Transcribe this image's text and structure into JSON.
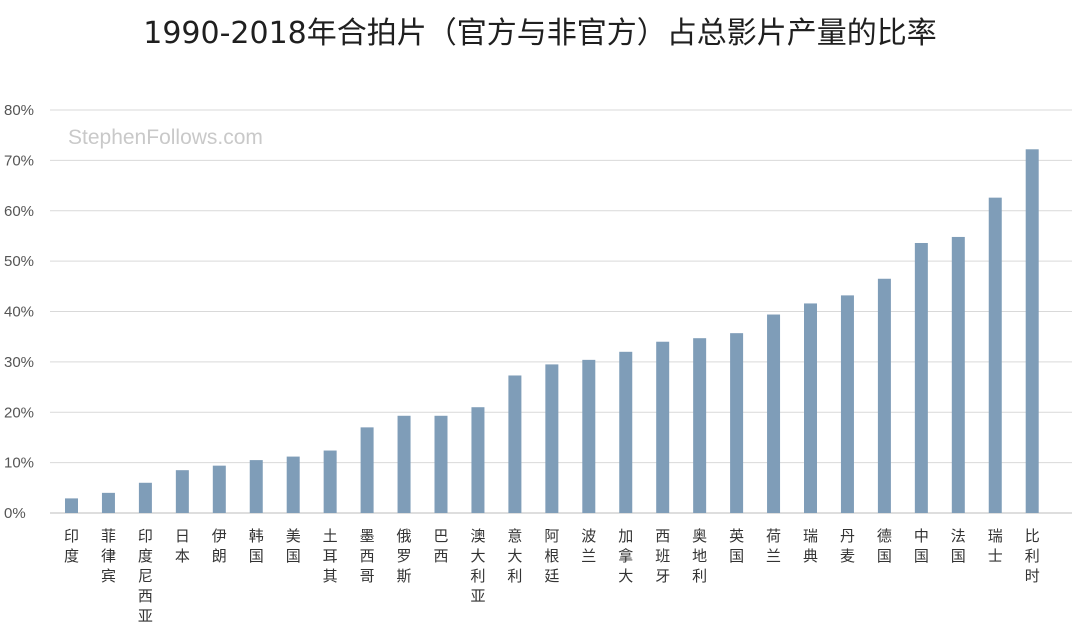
{
  "chart_data": {
    "type": "bar",
    "title": "1990-2018年合拍片（官方与非官方）占总影片产量的比率",
    "watermark": "StephenFollows.com",
    "xlabel": "",
    "ylabel": "",
    "ylim": [
      0,
      80
    ],
    "yticks": [
      0,
      10,
      20,
      30,
      40,
      50,
      60,
      70,
      80
    ],
    "ytick_format": "%",
    "grid": true,
    "bar_color": "#7f9db8",
    "grid_color": "#d9d9d9",
    "categories": [
      "印度",
      "菲律宾",
      "印度尼西亚",
      "日本",
      "伊朗",
      "韩国",
      "美国",
      "土耳其",
      "墨西哥",
      "俄罗斯",
      "巴西",
      "澳大利亚",
      "意大利",
      "阿根廷",
      "波兰",
      "加拿大",
      "西班牙",
      "奥地利",
      "英国",
      "荷兰",
      "瑞典",
      "丹麦",
      "德国",
      "中国",
      "法国",
      "瑞士",
      "比利时"
    ],
    "values": [
      2.9,
      4.0,
      6.0,
      8.5,
      9.4,
      10.5,
      11.2,
      12.4,
      17.0,
      19.3,
      19.3,
      21.0,
      27.3,
      29.5,
      30.4,
      32.0,
      34.0,
      34.7,
      35.7,
      39.4,
      41.6,
      43.2,
      46.5,
      53.6,
      54.8,
      62.6,
      72.2
    ]
  }
}
